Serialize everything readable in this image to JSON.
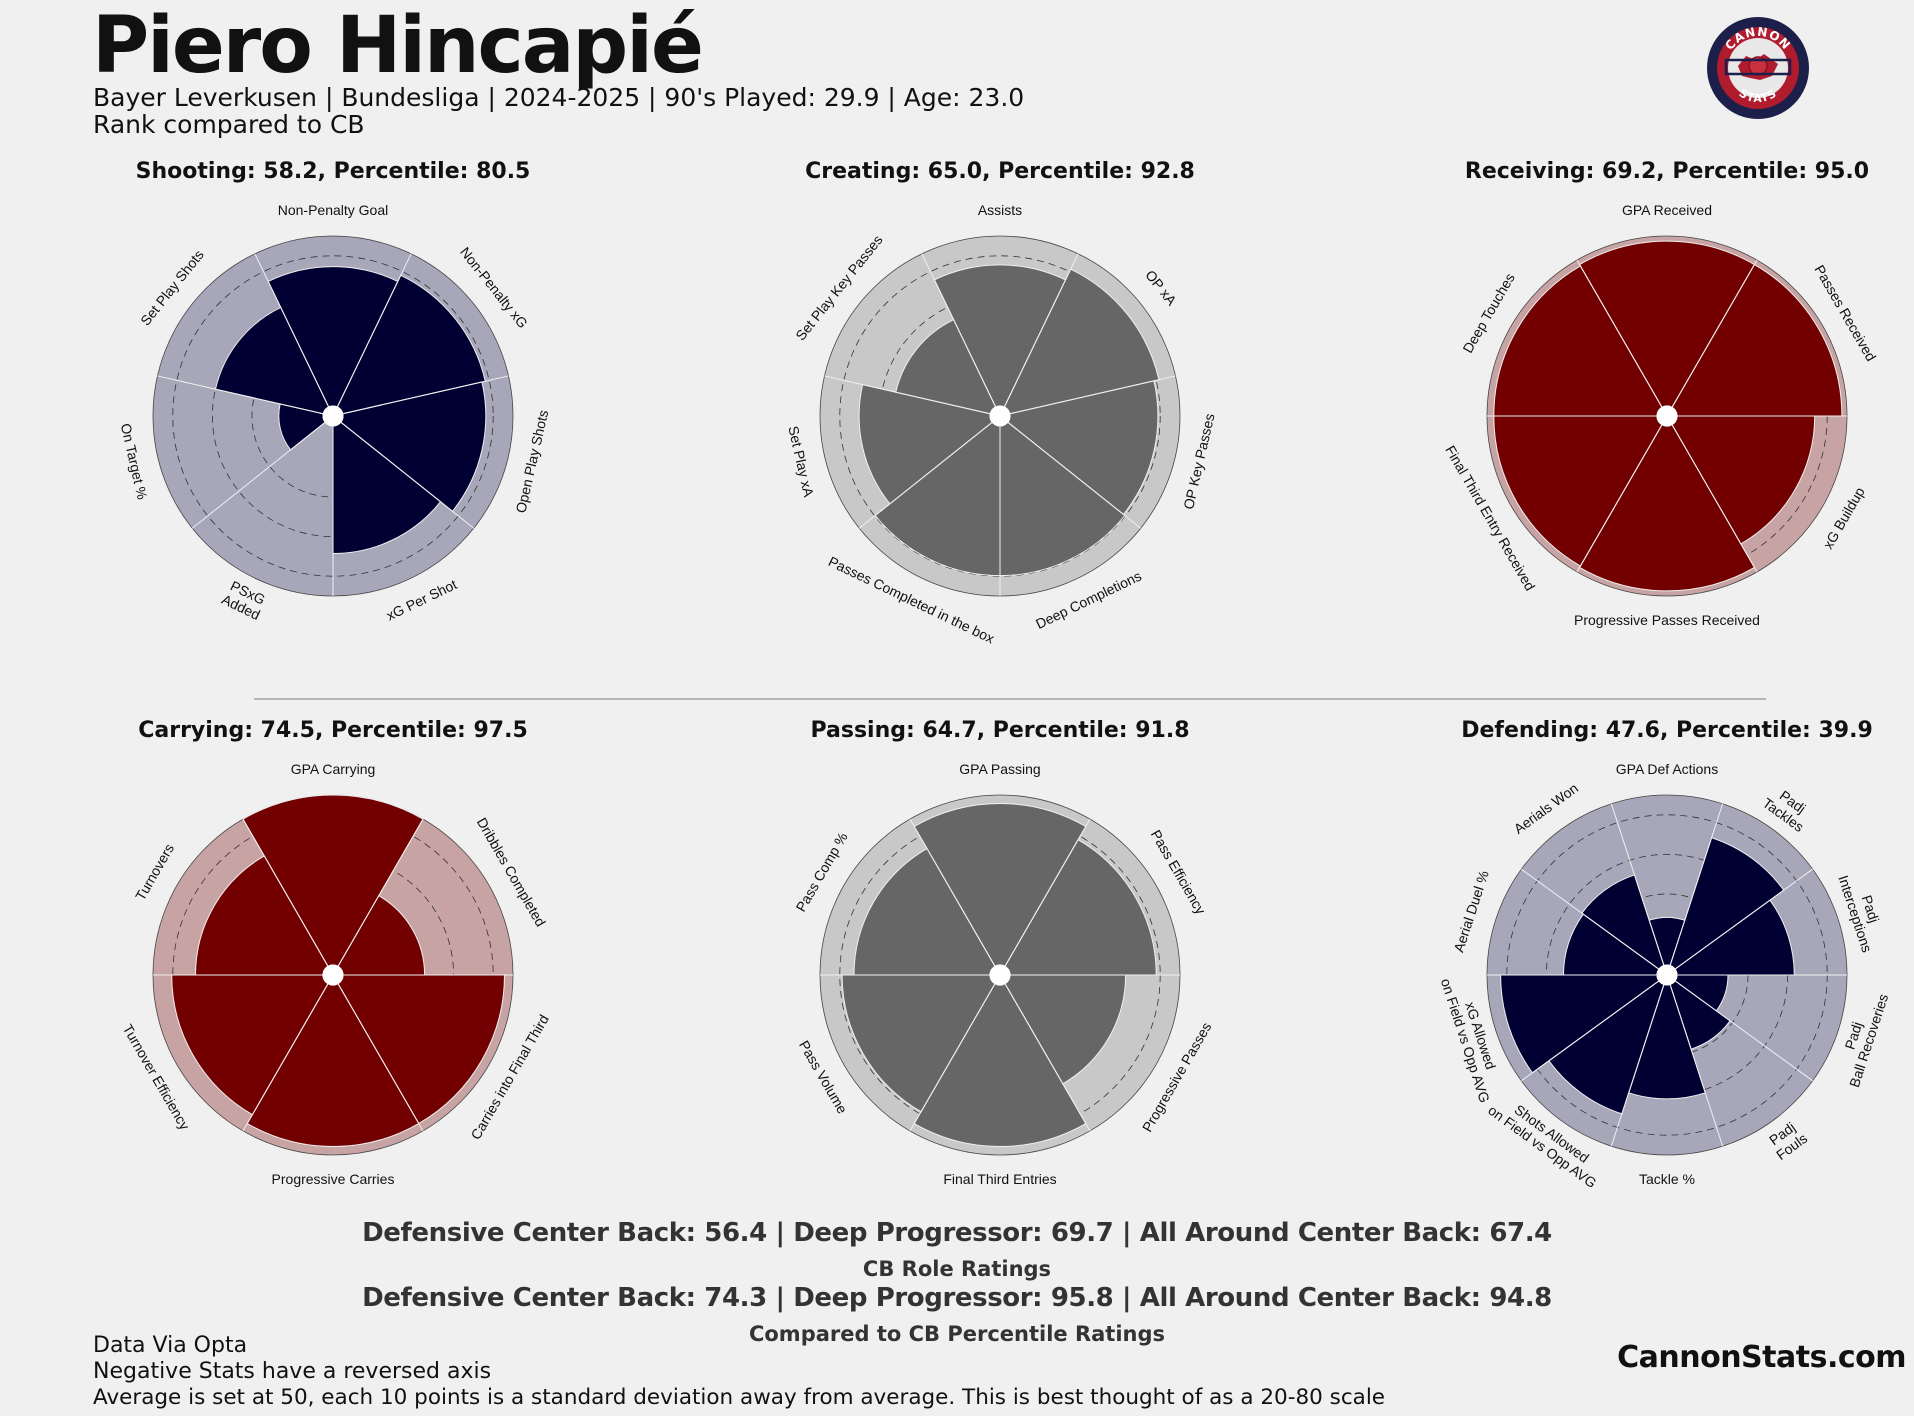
{
  "header": {
    "player_name": "Piero Hincapié",
    "subtitle": "Bayer Leverkusen  | Bundesliga | 2024-2025 | 90's Played: 29.9 | Age: 23.0",
    "rank_note": "Rank compared to CB"
  },
  "logo": {
    "top_text": "CANNON",
    "bottom_text": "STATS"
  },
  "colors": {
    "navy": "#000033",
    "navy_bg": "#a7a7b9",
    "gray": "#666666",
    "gray_bg": "#c8c8c8",
    "red": "#720000",
    "red_bg": "#c8a3a3",
    "background": "#f0f0f0"
  },
  "chart_data": [
    {
      "type": "polar-bar",
      "title": "Shooting: 58.2, Percentile: 80.5",
      "theme": "navy",
      "rlim": [
        0,
        100
      ],
      "categories": [
        "Non-Penalty Goal",
        "Non-Penalty xG",
        "Open Play Shots",
        "xG Per Shot",
        "PSxG\nAdded",
        "On Target %",
        "Set Play Shots"
      ],
      "values": [
        82,
        86,
        84,
        75,
        0,
        26,
        65
      ]
    },
    {
      "type": "polar-bar",
      "title": "Creating: 65.0, Percentile: 92.8",
      "theme": "gray",
      "rlim": [
        0,
        100
      ],
      "categories": [
        "Assists",
        "OP xA",
        "OP Key Passes",
        "Deep Completions",
        "Passes Completed in the box",
        "Set Play xA",
        "Set Play Key Passes"
      ],
      "values": [
        83,
        90,
        87,
        88,
        88,
        77,
        57
      ]
    },
    {
      "type": "polar-bar",
      "title": "Receiving: 69.2, Percentile: 95.0",
      "theme": "red",
      "rlim": [
        0,
        100
      ],
      "categories": [
        "GPA Received",
        "Passes Received",
        "xG Buildup",
        "Progressive Passes Received",
        "Final Third Entry Received",
        "Deep Touches"
      ],
      "values": [
        97,
        97,
        81,
        97,
        96,
        96
      ]
    },
    {
      "type": "polar-bar",
      "title": "Carrying: 74.5, Percentile: 97.5",
      "theme": "red",
      "rlim": [
        0,
        100
      ],
      "categories": [
        "GPA Carrying",
        "Dribbles Completed",
        "Carries into Final Third",
        "Progressive Carries",
        "Turnover Efficiency",
        "Turnovers"
      ],
      "values": [
        100,
        48,
        95,
        95,
        89,
        75
      ]
    },
    {
      "type": "polar-bar",
      "title": "Passing: 64.7, Percentile: 91.8",
      "theme": "gray",
      "rlim": [
        0,
        100
      ],
      "categories": [
        "GPA Passing",
        "Pass Efficiency",
        "Progressive Passes",
        "Final Third Entries",
        "Pass Volume",
        "Pass Comp %"
      ],
      "values": [
        95,
        86,
        68,
        95,
        87,
        80
      ]
    },
    {
      "type": "polar-bar",
      "title": "Defending: 47.6, Percentile: 39.9",
      "theme": "navy",
      "rlim": [
        0,
        100
      ],
      "categories": [
        "GPA Def Actions",
        "Padj\nTackles",
        "Padj\nInterceptions",
        "Padj\nBall Recoveries",
        "Padj\nFouls",
        "Tackle %",
        "Shots Allowed\non Field vs Opp AVG",
        "xG Allowed\non Field vs Opp AVG",
        "Aerial Duel %",
        "Aerials Won"
      ],
      "values": [
        28,
        79,
        69,
        30,
        40,
        67,
        80,
        92,
        55,
        56
      ]
    }
  ],
  "footer": {
    "role_values": "Defensive Center Back: 56.4 | Deep Progressor: 69.7 | All Around Center Back: 67.4",
    "role_caption": "CB Role Ratings",
    "percentile_values": "Defensive Center Back: 74.3 | Deep Progressor: 95.8 | All Around Center Back: 94.8",
    "percentile_caption": "Compared to CB Percentile Ratings",
    "note_1": "Data Via Opta",
    "note_2": "Negative Stats have a reversed axis",
    "note_3": "Average is set at 50, each 10 points is a standard deviation away from average. This is best thought of as a 20-80 scale",
    "site": "CannonStats.com"
  }
}
